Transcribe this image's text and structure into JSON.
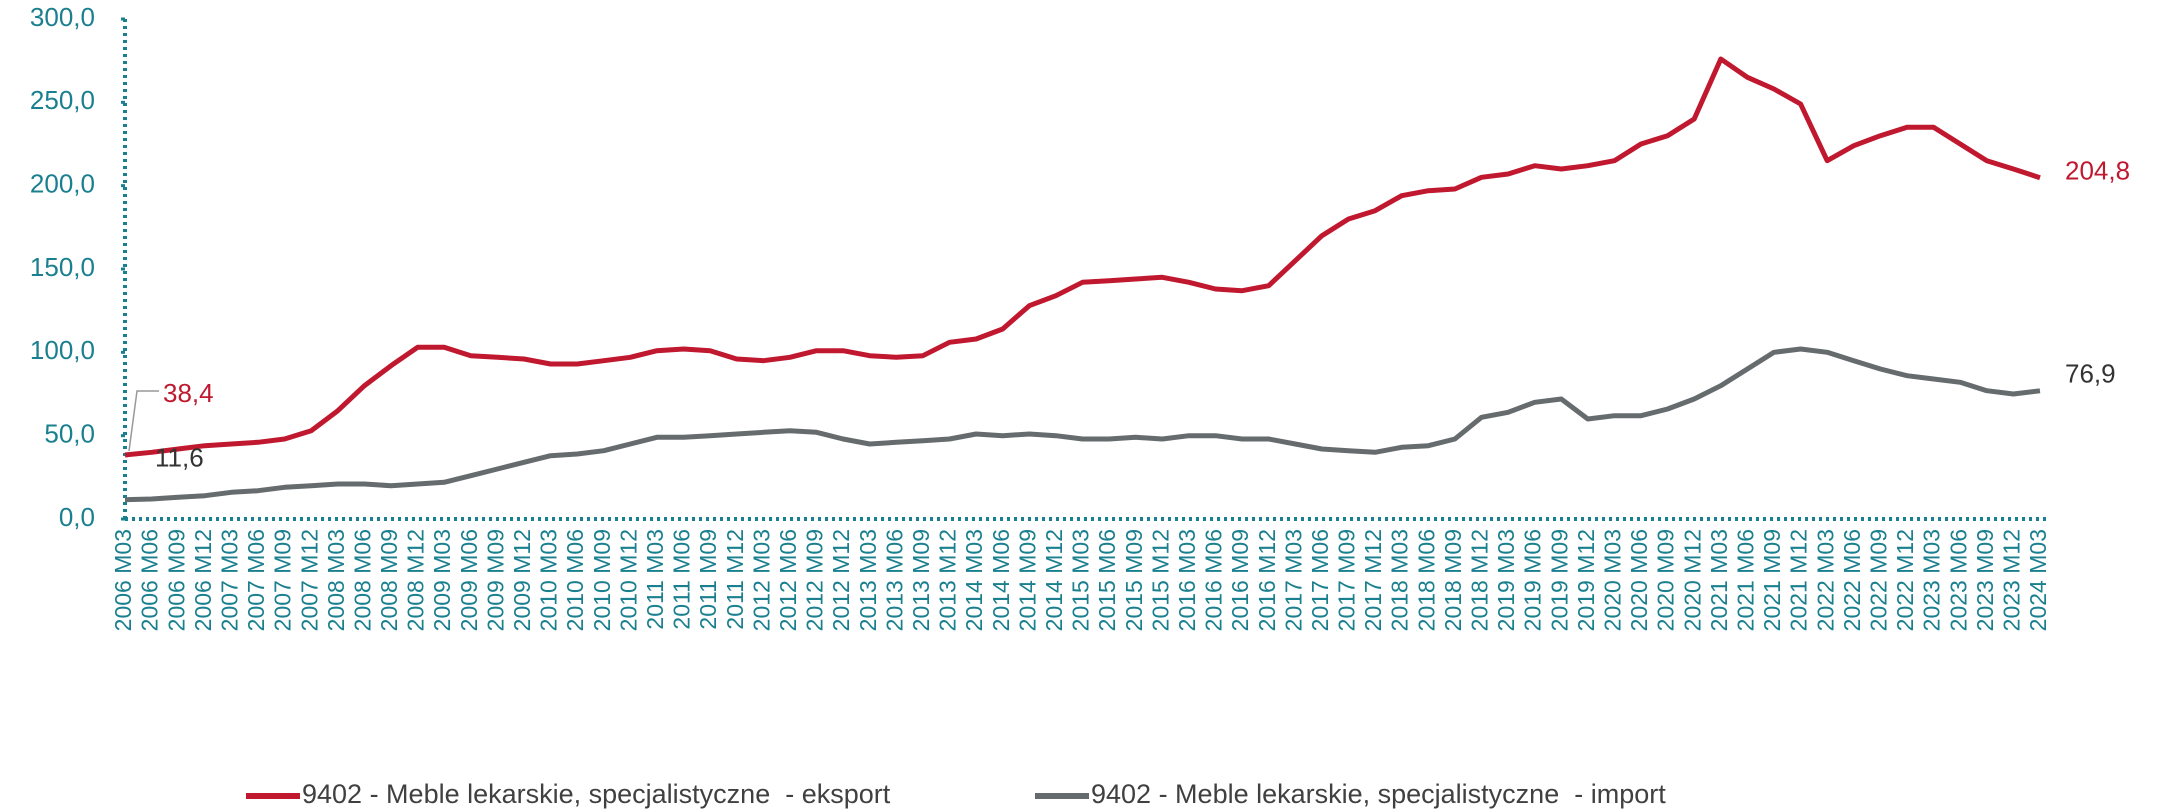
{
  "chart_data": {
    "type": "line",
    "categories": [
      "2006 M03",
      "2006 M06",
      "2006 M09",
      "2006 M12",
      "2007 M03",
      "2007 M06",
      "2007 M09",
      "2007 M12",
      "2008 M03",
      "2008 M06",
      "2008 M09",
      "2008 M12",
      "2009 M03",
      "2009 M06",
      "2009 M09",
      "2009 M12",
      "2010 M03",
      "2010 M06",
      "2010 M09",
      "2010 M12",
      "2011 M03",
      "2011 M06",
      "2011 M09",
      "2011 M12",
      "2012 M03",
      "2012 M06",
      "2012 M09",
      "2012 M12",
      "2013 M03",
      "2013 M06",
      "2013 M09",
      "2013 M12",
      "2014 M03",
      "2014 M06",
      "2014 M09",
      "2014 M12",
      "2015 M03",
      "2015 M06",
      "2015 M09",
      "2015 M12",
      "2016 M03",
      "2016 M06",
      "2016 M09",
      "2016 M12",
      "2017 M03",
      "2017 M06",
      "2017 M09",
      "2017 M12",
      "2018 M03",
      "2018 M06",
      "2018 M09",
      "2018 M12",
      "2019 M03",
      "2019 M06",
      "2019 M09",
      "2019 M12",
      "2020 M03",
      "2020 M06",
      "2020 M09",
      "2020 M12",
      "2021 M03",
      "2021 M06",
      "2021 M09",
      "2021 M12",
      "2022 M03",
      "2022 M06",
      "2022 M09",
      "2022 M12",
      "2023 M03",
      "2023 M06",
      "2023 M09",
      "2023 M12",
      "2024 M03"
    ],
    "series": [
      {
        "name": "9402 - Meble lekarskie, specjalistyczne  - eksport",
        "color": "#c0182f",
        "values": [
          38.4,
          40,
          42,
          44,
          45,
          46,
          48,
          53,
          65,
          80,
          92,
          103,
          103,
          98,
          97,
          96,
          93,
          93,
          95,
          97,
          101,
          102,
          101,
          96,
          95,
          97,
          101,
          101,
          98,
          97,
          98,
          106,
          108,
          114,
          128,
          134,
          142,
          143,
          144,
          145,
          142,
          138,
          137,
          140,
          155,
          170,
          180,
          185,
          194,
          197,
          198,
          205,
          207,
          212,
          210,
          212,
          215,
          225,
          230,
          240,
          276,
          265,
          258,
          249,
          215,
          224,
          230,
          235,
          235,
          225,
          215,
          210,
          204.8
        ],
        "value_labels": [
          "38,4",
          null,
          null,
          null,
          null,
          null,
          null,
          null,
          null,
          null,
          null,
          null,
          null,
          null,
          null,
          null,
          null,
          null,
          null,
          null,
          null,
          null,
          null,
          null,
          null,
          null,
          null,
          null,
          null,
          null,
          null,
          null,
          null,
          null,
          null,
          null,
          null,
          null,
          null,
          null,
          null,
          null,
          null,
          null,
          null,
          null,
          null,
          null,
          null,
          null,
          null,
          null,
          null,
          null,
          null,
          null,
          null,
          null,
          null,
          null,
          null,
          null,
          null,
          null,
          null,
          null,
          null,
          null,
          null,
          null,
          null,
          null,
          "204,8"
        ]
      },
      {
        "name": "9402 - Meble lekarskie, specjalistyczne  - import",
        "color": "#666b6d",
        "values": [
          11.6,
          12,
          13,
          14,
          16,
          17,
          19,
          20,
          21,
          21,
          20,
          21,
          22,
          26,
          30,
          34,
          38,
          39,
          41,
          45,
          49,
          49,
          50,
          51,
          52,
          53,
          52,
          48,
          45,
          46,
          47,
          48,
          51,
          50,
          51,
          50,
          48,
          48,
          49,
          48,
          50,
          50,
          48,
          48,
          45,
          42,
          41,
          40,
          43,
          44,
          48,
          61,
          64,
          70,
          72,
          60,
          62,
          62,
          66,
          72,
          80,
          90,
          100,
          102,
          100,
          95,
          90,
          86,
          84,
          82,
          77,
          75,
          76.9
        ],
        "value_labels": [
          "11,6",
          null,
          null,
          null,
          null,
          null,
          null,
          null,
          null,
          null,
          null,
          null,
          null,
          null,
          null,
          null,
          null,
          null,
          null,
          null,
          null,
          null,
          null,
          null,
          null,
          null,
          null,
          null,
          null,
          null,
          null,
          null,
          null,
          null,
          null,
          null,
          null,
          null,
          null,
          null,
          null,
          null,
          null,
          null,
          null,
          null,
          null,
          null,
          null,
          null,
          null,
          null,
          null,
          null,
          null,
          null,
          null,
          null,
          null,
          null,
          null,
          null,
          null,
          null,
          null,
          null,
          null,
          null,
          null,
          null,
          null,
          null,
          "76,9"
        ]
      }
    ],
    "ylim": [
      0,
      300
    ],
    "yticks": [
      {
        "value": 0,
        "label": "0,0"
      },
      {
        "value": 50,
        "label": "50,0"
      },
      {
        "value": 100,
        "label": "100,0"
      },
      {
        "value": 150,
        "label": "150,0"
      },
      {
        "value": 200,
        "label": "200,0"
      },
      {
        "value": 250,
        "label": "250,0"
      },
      {
        "value": 300,
        "label": "300,0"
      }
    ],
    "legend": "bottom"
  }
}
